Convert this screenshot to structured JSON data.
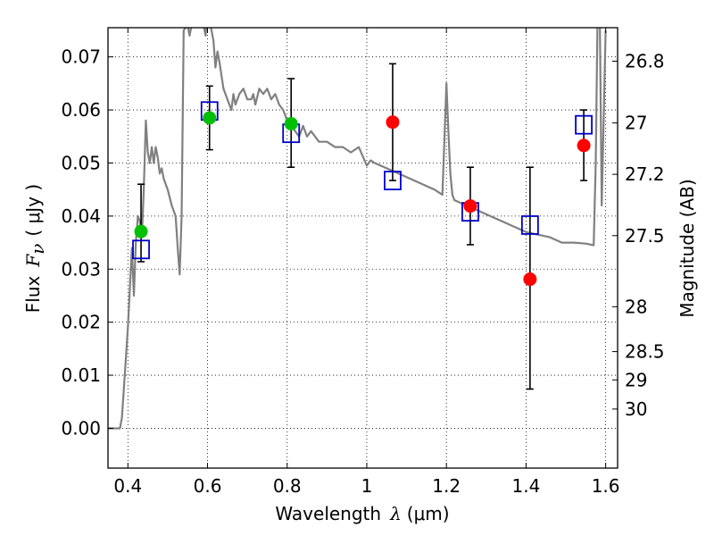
{
  "chart_data": {
    "type": "scatter",
    "xlabel": {
      "prefix": "Wavelength",
      "symbol": "λ",
      "unit": "(μm)"
    },
    "ylabel": {
      "prefix": "Flux",
      "symbol": "F",
      "subscript": "ν",
      "unit": "( μJy )"
    },
    "y2label": "Magnitude (AB)",
    "xlim": [
      0.35,
      1.63
    ],
    "ylim": [
      -0.0075,
      0.0755
    ],
    "grid": true,
    "x_ticks": [
      {
        "v": 0.4,
        "label": "0.4"
      },
      {
        "v": 0.6,
        "label": "0.6"
      },
      {
        "v": 0.8,
        "label": "0.8"
      },
      {
        "v": 1.0,
        "label": "1"
      },
      {
        "v": 1.2,
        "label": "1.2"
      },
      {
        "v": 1.4,
        "label": "1.4"
      },
      {
        "v": 1.6,
        "label": "1.6"
      }
    ],
    "y_ticks": [
      {
        "v": 0.0,
        "label": "0.00"
      },
      {
        "v": 0.01,
        "label": "0.01"
      },
      {
        "v": 0.02,
        "label": "0.02"
      },
      {
        "v": 0.03,
        "label": "0.03"
      },
      {
        "v": 0.04,
        "label": "0.04"
      },
      {
        "v": 0.05,
        "label": "0.05"
      },
      {
        "v": 0.06,
        "label": "0.06"
      },
      {
        "v": 0.07,
        "label": "0.07"
      }
    ],
    "y2_ticks": [
      {
        "mag": 26.8,
        "label": "26.8"
      },
      {
        "mag": 27.0,
        "label": "27"
      },
      {
        "mag": 27.2,
        "label": "27.2"
      },
      {
        "mag": 27.5,
        "label": "27.5"
      },
      {
        "mag": 28.0,
        "label": "28"
      },
      {
        "mag": 28.5,
        "label": "28.5"
      },
      {
        "mag": 29.0,
        "label": "29"
      },
      {
        "mag": 30.0,
        "label": "30"
      }
    ],
    "colors": {
      "model": "#808080",
      "green": "#00c000",
      "red": "#ff0000",
      "model_box": "#0000cc",
      "errorbar": "#000000"
    },
    "series": [
      {
        "kind": "model_spectrum",
        "x": [
          0.35,
          0.38,
          0.385,
          0.39,
          0.4,
          0.41,
          0.415,
          0.42,
          0.425,
          0.43,
          0.435,
          0.44,
          0.445,
          0.45,
          0.455,
          0.46,
          0.465,
          0.47,
          0.475,
          0.48,
          0.485,
          0.49,
          0.5,
          0.51,
          0.52,
          0.525,
          0.53,
          0.535,
          0.54,
          0.55,
          0.555,
          0.56,
          0.57,
          0.58,
          0.59,
          0.595,
          0.6,
          0.61,
          0.615,
          0.62,
          0.625,
          0.63,
          0.64,
          0.65,
          0.66,
          0.665,
          0.67,
          0.68,
          0.69,
          0.7,
          0.71,
          0.715,
          0.72,
          0.73,
          0.74,
          0.75,
          0.76,
          0.77,
          0.78,
          0.79,
          0.8,
          0.81,
          0.82,
          0.83,
          0.84,
          0.85,
          0.86,
          0.87,
          0.88,
          0.9,
          0.92,
          0.94,
          0.96,
          0.98,
          1.0,
          1.01,
          1.02,
          1.05,
          1.08,
          1.11,
          1.14,
          1.17,
          1.19,
          1.2,
          1.205,
          1.21,
          1.215,
          1.22,
          1.25,
          1.28,
          1.31,
          1.34,
          1.37,
          1.4,
          1.43,
          1.46,
          1.49,
          1.52,
          1.55,
          1.57,
          1.575,
          1.58,
          1.585,
          1.59,
          1.6
        ],
        "y": [
          0.0,
          0.0,
          0.002,
          0.0075,
          0.019,
          0.034,
          0.025,
          0.035,
          0.04,
          0.039,
          0.036,
          0.045,
          0.058,
          0.052,
          0.05,
          0.053,
          0.05,
          0.053,
          0.051,
          0.048,
          0.049,
          0.047,
          0.045,
          0.042,
          0.04,
          0.034,
          0.029,
          0.04,
          0.075,
          0.076,
          0.074,
          0.076,
          0.077,
          0.076,
          0.076,
          0.074,
          0.078,
          0.075,
          0.073,
          0.068,
          0.071,
          0.069,
          0.064,
          0.062,
          0.06,
          0.063,
          0.061,
          0.063,
          0.064,
          0.062,
          0.062,
          0.063,
          0.061,
          0.064,
          0.063,
          0.064,
          0.062,
          0.063,
          0.061,
          0.06,
          0.058,
          0.057,
          0.056,
          0.055,
          0.057,
          0.055,
          0.056,
          0.055,
          0.054,
          0.054,
          0.053,
          0.053,
          0.052,
          0.053,
          0.0495,
          0.0505,
          0.05,
          0.049,
          0.048,
          0.047,
          0.046,
          0.045,
          0.044,
          0.065,
          0.056,
          0.048,
          0.044,
          0.043,
          0.042,
          0.041,
          0.04,
          0.039,
          0.038,
          0.037,
          0.0365,
          0.036,
          0.035,
          0.035,
          0.0348,
          0.0345,
          0.05,
          0.08,
          0.08,
          0.042,
          0.075
        ]
      },
      {
        "kind": "model_boxes",
        "points": [
          {
            "x": 0.433,
            "y": 0.0337
          },
          {
            "x": 0.605,
            "y": 0.0598
          },
          {
            "x": 0.81,
            "y": 0.0556
          },
          {
            "x": 1.065,
            "y": 0.0467
          },
          {
            "x": 1.26,
            "y": 0.0408
          },
          {
            "x": 1.41,
            "y": 0.0383
          },
          {
            "x": 1.545,
            "y": 0.0572
          }
        ]
      },
      {
        "kind": "observed",
        "points": [
          {
            "x": 0.433,
            "y": 0.0371,
            "err": [
              0.0057,
              0.0089
            ],
            "color": "green"
          },
          {
            "x": 0.605,
            "y": 0.0585,
            "err": [
              0.006,
              0.006
            ],
            "color": "green"
          },
          {
            "x": 0.81,
            "y": 0.0574,
            "err": [
              0.0082,
              0.0085
            ],
            "color": "green"
          },
          {
            "x": 1.065,
            "y": 0.0577,
            "err": [
              0.011,
              0.011
            ],
            "color": "red"
          },
          {
            "x": 1.26,
            "y": 0.0419,
            "err": [
              0.0073,
              0.0073
            ],
            "color": "red"
          },
          {
            "x": 1.41,
            "y": 0.0281,
            "err": [
              0.0207,
              0.0211
            ],
            "color": "red"
          },
          {
            "x": 1.545,
            "y": 0.0533,
            "err": [
              0.0066,
              0.0067
            ],
            "color": "red"
          }
        ]
      }
    ]
  }
}
